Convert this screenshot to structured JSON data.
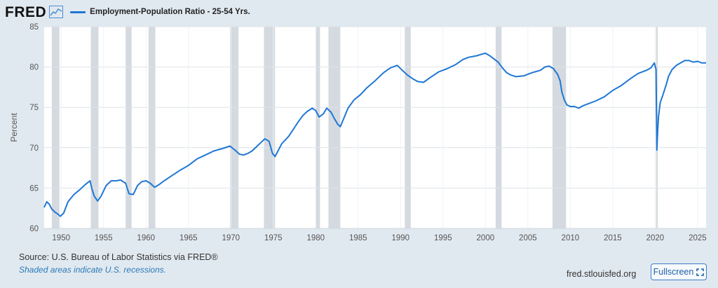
{
  "header": {
    "logo": "FRED",
    "series_label": "Employment-Population Ratio - 25-54 Yrs."
  },
  "footer": {
    "source": "U.S. Bureau of Labor Statistics via FRED®",
    "note": "Shaded areas indicate U.S. recessions.",
    "site": "fred.stlouisfed.org",
    "fullscreen_label": "Fullscreen"
  },
  "icons": {
    "logo_graph": "line-graph-icon",
    "fullscreen": "expand-icon"
  },
  "colors": {
    "line": "#1f77d4",
    "recession": "#c6cdd4",
    "background": "#e1e9f0"
  },
  "chart_data": {
    "type": "line",
    "title": "",
    "ylabel": "Percent",
    "xlabel": "",
    "xlim": [
      1948.0,
      2026.0
    ],
    "ylim": [
      60,
      85
    ],
    "xticks": [
      1950,
      1955,
      1960,
      1965,
      1970,
      1975,
      1980,
      1985,
      1990,
      1995,
      2000,
      2005,
      2010,
      2015,
      2020,
      2025
    ],
    "yticks": [
      60,
      65,
      70,
      75,
      80,
      85
    ],
    "grid": true,
    "legend": "top-left",
    "series": [
      {
        "name": "Employment-Population Ratio - 25-54 Yrs.",
        "x": [
          1948.0,
          1948.3,
          1948.6,
          1948.9,
          1949.3,
          1949.6,
          1949.9,
          1950.3,
          1950.8,
          1951.5,
          1952.2,
          1952.8,
          1953.4,
          1953.6,
          1953.9,
          1954.3,
          1954.7,
          1955.3,
          1955.9,
          1956.5,
          1957.0,
          1957.6,
          1958.0,
          1958.5,
          1959.0,
          1959.5,
          1960.0,
          1960.5,
          1961.0,
          1961.5,
          1962.0,
          1963.0,
          1964.0,
          1965.0,
          1966.0,
          1967.0,
          1968.0,
          1969.0,
          1969.9,
          1970.5,
          1971.0,
          1971.5,
          1972.0,
          1972.5,
          1973.0,
          1973.6,
          1974.0,
          1974.5,
          1974.9,
          1975.2,
          1975.5,
          1976.0,
          1976.8,
          1977.5,
          1978.0,
          1978.5,
          1979.0,
          1979.6,
          1980.0,
          1980.4,
          1980.9,
          1981.3,
          1981.8,
          1982.2,
          1982.6,
          1982.9,
          1983.3,
          1983.8,
          1984.5,
          1985.3,
          1986.0,
          1987.0,
          1988.0,
          1988.8,
          1989.6,
          1990.2,
          1990.8,
          1991.5,
          1992.0,
          1992.7,
          1993.5,
          1994.5,
          1995.5,
          1996.5,
          1997.3,
          1998.0,
          1999.0,
          1999.6,
          2000.0,
          2000.5,
          2001.0,
          2001.5,
          2002.0,
          2002.5,
          2003.0,
          2003.6,
          2004.5,
          2005.5,
          2006.5,
          2007.0,
          2007.5,
          2008.0,
          2008.5,
          2008.8,
          2009.0,
          2009.3,
          2009.6,
          2010.0,
          2010.5,
          2011.0,
          2011.5,
          2012.0,
          2013.0,
          2014.0,
          2015.0,
          2016.0,
          2017.0,
          2018.0,
          2019.0,
          2019.5,
          2019.9,
          2020.1,
          2020.2,
          2020.3,
          2020.4,
          2020.6,
          2020.9,
          2021.3,
          2021.6,
          2022.0,
          2022.5,
          2023.0,
          2023.5,
          2024.0,
          2024.5,
          2025.0,
          2025.5,
          2026.0
        ],
        "y": [
          62.6,
          63.3,
          63.0,
          62.4,
          62.0,
          61.8,
          61.5,
          61.9,
          63.3,
          64.2,
          64.8,
          65.4,
          65.9,
          65.0,
          64.0,
          63.4,
          64.0,
          65.3,
          65.9,
          65.9,
          66.0,
          65.6,
          64.3,
          64.2,
          65.3,
          65.8,
          65.9,
          65.6,
          65.1,
          65.4,
          65.8,
          66.5,
          67.2,
          67.8,
          68.6,
          69.1,
          69.6,
          69.9,
          70.2,
          69.7,
          69.2,
          69.1,
          69.3,
          69.6,
          70.1,
          70.7,
          71.1,
          70.8,
          69.3,
          68.9,
          69.5,
          70.5,
          71.4,
          72.5,
          73.3,
          74.0,
          74.5,
          74.9,
          74.6,
          73.8,
          74.2,
          74.9,
          74.4,
          73.6,
          72.9,
          72.6,
          73.6,
          74.9,
          75.9,
          76.6,
          77.4,
          78.3,
          79.3,
          79.9,
          80.2,
          79.6,
          79.0,
          78.5,
          78.2,
          78.1,
          78.7,
          79.4,
          79.8,
          80.3,
          80.9,
          81.2,
          81.4,
          81.6,
          81.7,
          81.4,
          81.0,
          80.6,
          79.9,
          79.3,
          79.0,
          78.8,
          78.9,
          79.3,
          79.6,
          80.0,
          80.1,
          79.8,
          79.1,
          78.3,
          76.9,
          75.9,
          75.3,
          75.1,
          75.1,
          74.9,
          75.2,
          75.4,
          75.8,
          76.3,
          77.1,
          77.7,
          78.5,
          79.2,
          79.6,
          79.9,
          80.5,
          79.7,
          69.7,
          72.1,
          73.9,
          75.6,
          76.5,
          77.8,
          78.9,
          79.7,
          80.2,
          80.5,
          80.8,
          80.8,
          80.6,
          80.7,
          80.5,
          80.5
        ]
      }
    ],
    "recessions": [
      [
        1948.9,
        1949.8
      ],
      [
        1953.5,
        1954.4
      ],
      [
        1957.6,
        1958.3
      ],
      [
        1960.3,
        1961.1
      ],
      [
        1969.9,
        1970.9
      ],
      [
        1973.9,
        1975.2
      ],
      [
        1980.0,
        1980.5
      ],
      [
        1981.5,
        1982.9
      ],
      [
        1990.5,
        1991.2
      ],
      [
        2001.2,
        2001.9
      ],
      [
        2007.9,
        2009.5
      ],
      [
        2020.1,
        2020.3
      ]
    ]
  }
}
